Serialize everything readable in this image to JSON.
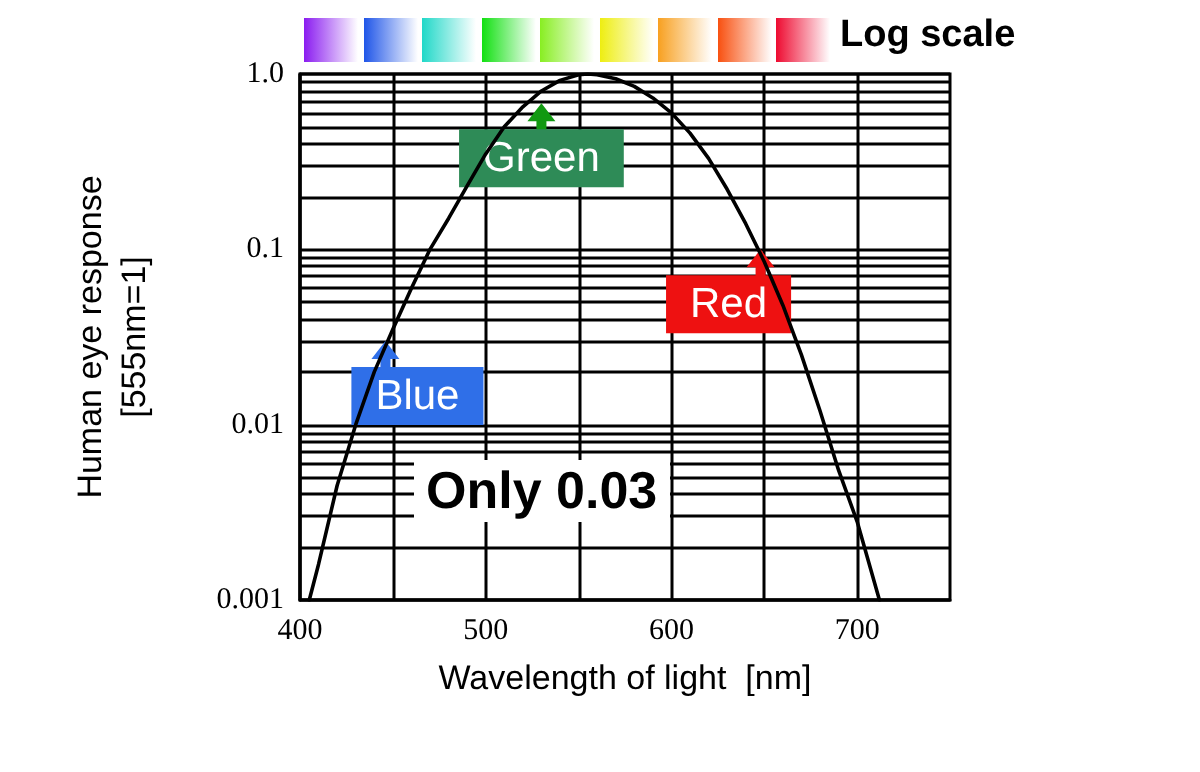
{
  "chart_data": {
    "type": "line",
    "xlabel": "Wavelength of light  [nm]",
    "ylabel": "Human eye response\n[555nm=1]",
    "x": [
      405,
      410,
      420,
      430,
      440,
      450,
      460,
      470,
      480,
      490,
      500,
      510,
      520,
      530,
      540,
      550,
      555,
      560,
      570,
      580,
      590,
      600,
      610,
      620,
      630,
      640,
      650,
      660,
      670,
      680,
      690,
      700,
      712
    ],
    "series": [
      {
        "color": "#000000",
        "values": [
          0.001,
          0.0016,
          0.0045,
          0.01,
          0.02,
          0.035,
          0.06,
          0.1,
          0.15,
          0.23,
          0.35,
          0.5,
          0.65,
          0.8,
          0.92,
          0.99,
          1.0,
          0.99,
          0.94,
          0.85,
          0.73,
          0.6,
          0.46,
          0.33,
          0.22,
          0.14,
          0.085,
          0.048,
          0.025,
          0.012,
          0.0055,
          0.0028,
          0.001
        ]
      }
    ],
    "xlim": [
      400,
      750
    ],
    "xticks": [
      400,
      {
        "value": 450,
        "label": null
      },
      500,
      {
        "value": 550,
        "label": null
      },
      600,
      {
        "value": 650,
        "label": null
      },
      700
    ],
    "ylim": [
      0.001,
      1
    ],
    "log": "y",
    "yticks": [
      0.001,
      {
        "value": 0.002,
        "label": null
      },
      {
        "value": 0.003,
        "label": null
      },
      {
        "value": 0.004,
        "label": null
      },
      {
        "value": 0.005,
        "label": null
      },
      {
        "value": 0.006,
        "label": null
      },
      {
        "value": 0.007,
        "label": null
      },
      {
        "value": 0.008,
        "label": null
      },
      {
        "value": 0.009,
        "label": null
      },
      0.01,
      {
        "value": 0.02,
        "label": null
      },
      {
        "value": 0.03,
        "label": null
      },
      {
        "value": 0.04,
        "label": null
      },
      {
        "value": 0.05,
        "label": null
      },
      {
        "value": 0.06,
        "label": null
      },
      {
        "value": 0.07,
        "label": null
      },
      {
        "value": 0.08,
        "label": null
      },
      {
        "value": 0.09,
        "label": null
      },
      0.1,
      {
        "value": 0.2,
        "label": null
      },
      {
        "value": 0.3,
        "label": null
      },
      {
        "value": 0.4,
        "label": null
      },
      {
        "value": 0.5,
        "label": null
      },
      {
        "value": 0.6,
        "label": null
      },
      {
        "value": 0.7,
        "label": null
      },
      {
        "value": 0.8,
        "label": null
      },
      {
        "value": 0.9,
        "label": null
      },
      {
        "value": 1,
        "label": "1.0"
      }
    ],
    "grid": true,
    "marker": "none",
    "line_style": "solid",
    "annotations": [
      {
        "text": "Green",
        "x": 530,
        "y": 0.68
      },
      {
        "text": "Blue",
        "x": 446,
        "y": 0.03
      },
      {
        "text": "Red",
        "x": 648,
        "y": 0.1
      },
      "Only 0.03",
      "Log scale"
    ]
  }
}
